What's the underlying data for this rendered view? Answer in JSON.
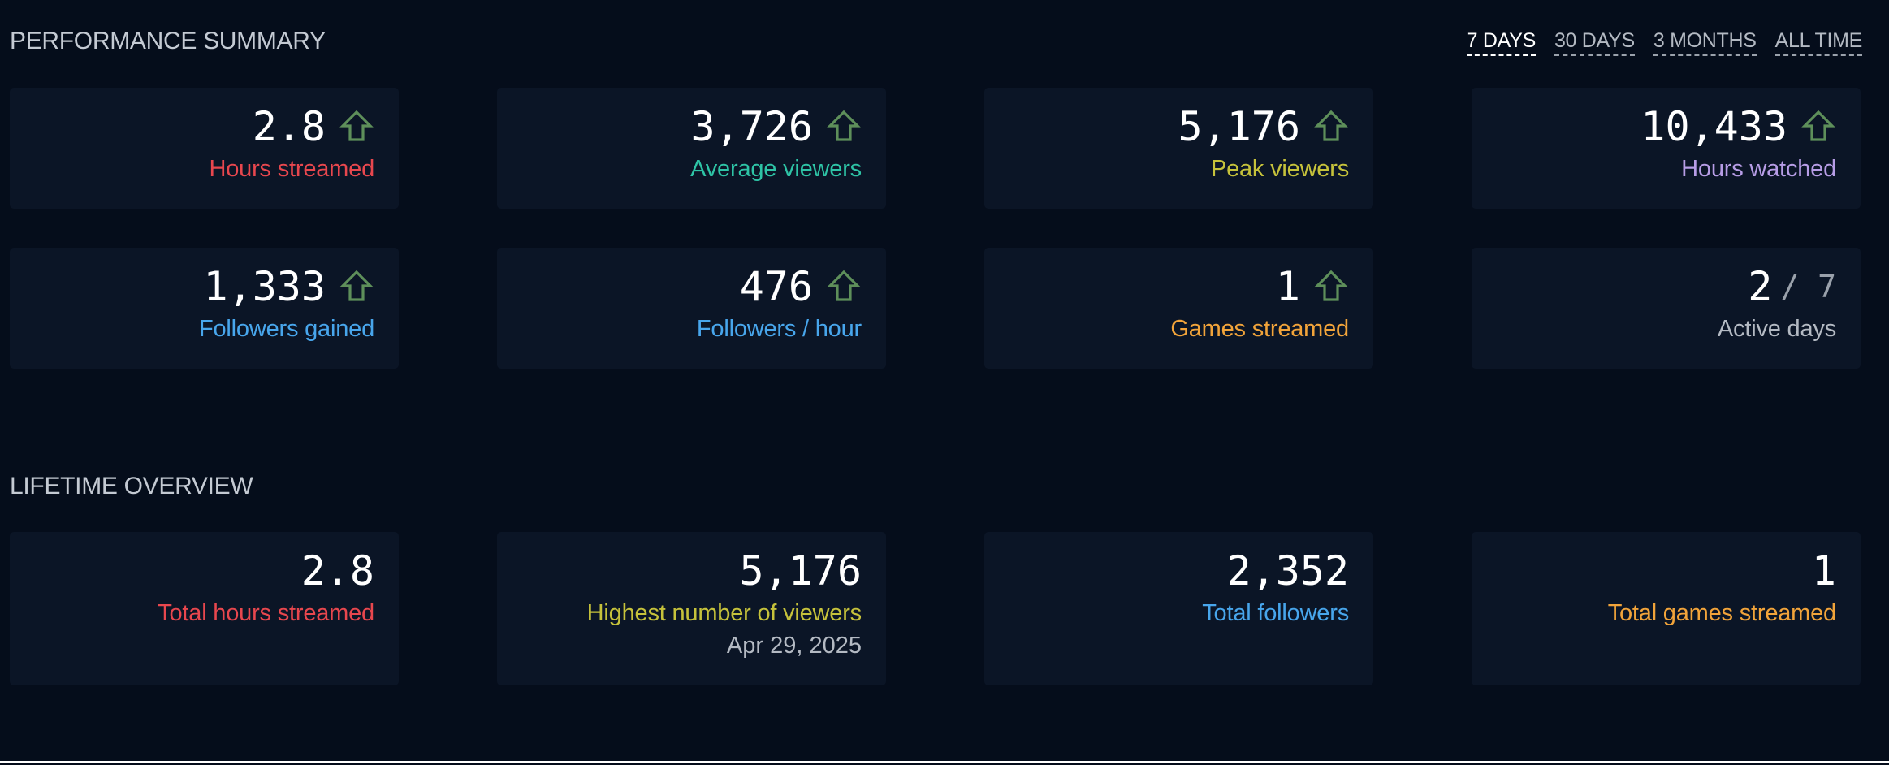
{
  "performance": {
    "title": "PERFORMANCE SUMMARY",
    "ranges": [
      "7 DAYS",
      "30 DAYS",
      "3 MONTHS",
      "ALL TIME"
    ],
    "active_range": "7 DAYS",
    "trend_color": "#5e8f5a",
    "cards": [
      {
        "value": "2.8",
        "label": "Hours streamed",
        "color": "#e8474e",
        "trend": "up"
      },
      {
        "value": "3,726",
        "label": "Average viewers",
        "color": "#2ec4a6",
        "trend": "up"
      },
      {
        "value": "5,176",
        "label": "Peak viewers",
        "color": "#c6c23b",
        "trend": "up"
      },
      {
        "value": "10,433",
        "label": "Hours watched",
        "color": "#b79de6",
        "trend": "up"
      },
      {
        "value": "1,333",
        "label": "Followers gained",
        "color": "#48a6ec",
        "trend": "up"
      },
      {
        "value": "476",
        "label": "Followers / hour",
        "color": "#48a6ec",
        "trend": "up"
      },
      {
        "value": "1",
        "label": "Games streamed",
        "color": "#f2a43a",
        "trend": "up"
      },
      {
        "value": "2",
        "denominator": "/ 7",
        "label": "Active days",
        "color": "#b4bac3"
      }
    ]
  },
  "lifetime": {
    "title": "LIFETIME OVERVIEW",
    "cards": [
      {
        "value": "2.8",
        "label": "Total hours streamed",
        "color": "#e8474e"
      },
      {
        "value": "5,176",
        "label": "Highest number of viewers",
        "sub": "Apr 29, 2025",
        "color": "#c6c23b"
      },
      {
        "value": "2,352",
        "label": "Total followers",
        "color": "#48a6ec"
      },
      {
        "value": "1",
        "label": "Total games streamed",
        "color": "#f2a43a"
      }
    ]
  }
}
